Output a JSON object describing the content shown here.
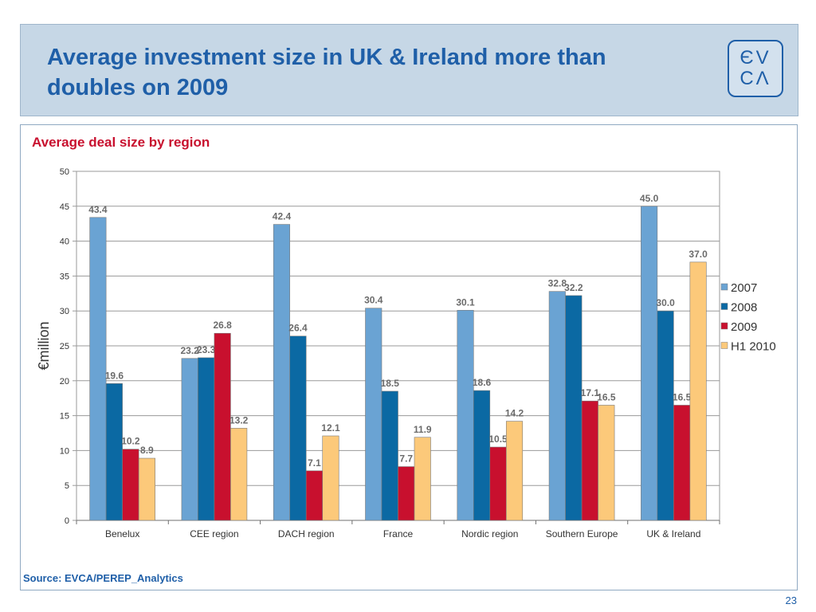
{
  "header": {
    "title": "Average investment size in UK & Ireland more than doubles on 2009",
    "logo_line1": "ЄV",
    "logo_line2": "CΛ"
  },
  "panel": {
    "subtitle": "Average deal size by region",
    "source": "Source: EVCA/PEREP_Analytics"
  },
  "page_number": "23",
  "colors": {
    "title": "#1f5fa8",
    "subtitle": "#c8102e",
    "header_bg": "#c6d7e6"
  },
  "chart_data": {
    "type": "bar",
    "title": "",
    "xlabel": "",
    "ylabel": "€million",
    "ylim": [
      0,
      50
    ],
    "yticks": [
      0,
      5,
      10,
      15,
      20,
      25,
      30,
      35,
      40,
      45,
      50
    ],
    "grid": true,
    "legend_position": "right",
    "categories": [
      "Benelux",
      "CEE region",
      "DACH region",
      "France",
      "Nordic region",
      "Southern Europe",
      "UK & Ireland"
    ],
    "series": [
      {
        "name": "2007",
        "color": "#6aa3d3",
        "values": [
          43.4,
          23.2,
          42.4,
          30.4,
          30.1,
          32.8,
          45.0
        ]
      },
      {
        "name": "2008",
        "color": "#0b69a3",
        "values": [
          19.6,
          23.3,
          26.4,
          18.5,
          18.6,
          32.2,
          30.0
        ]
      },
      {
        "name": "2009",
        "color": "#c8102e",
        "values": [
          10.2,
          26.8,
          7.1,
          7.7,
          10.5,
          17.1,
          16.5
        ]
      },
      {
        "name": "H1 2010",
        "color": "#fcc97a",
        "values": [
          8.9,
          13.2,
          12.1,
          11.9,
          14.2,
          16.5,
          37.0
        ]
      }
    ]
  }
}
